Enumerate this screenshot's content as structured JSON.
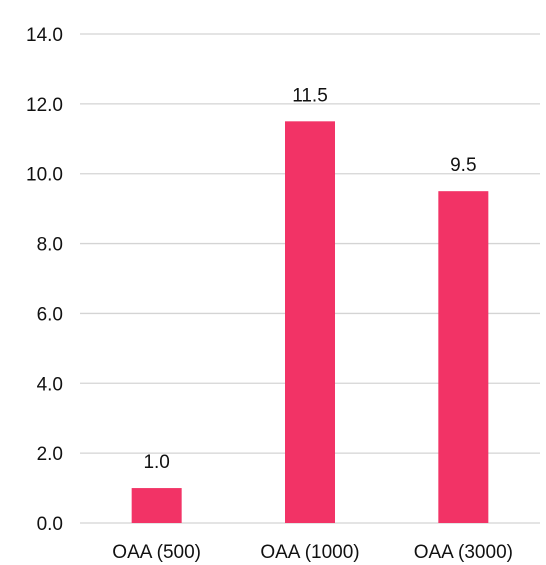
{
  "chart_data": {
    "type": "bar",
    "categories": [
      "OAA (500)",
      "OAA (1000)",
      "OAA (3000)"
    ],
    "values": [
      1.0,
      11.5,
      9.5
    ],
    "data_labels": [
      "1.0",
      "11.5",
      "9.5"
    ],
    "title": "",
    "xlabel": "",
    "ylabel": "",
    "ylim": [
      0,
      14
    ],
    "yticks": [
      "0.0",
      "2.0",
      "4.0",
      "6.0",
      "8.0",
      "10.0",
      "12.0",
      "14.0"
    ],
    "grid": true,
    "bar_color": "#f23366",
    "legend": "none"
  }
}
